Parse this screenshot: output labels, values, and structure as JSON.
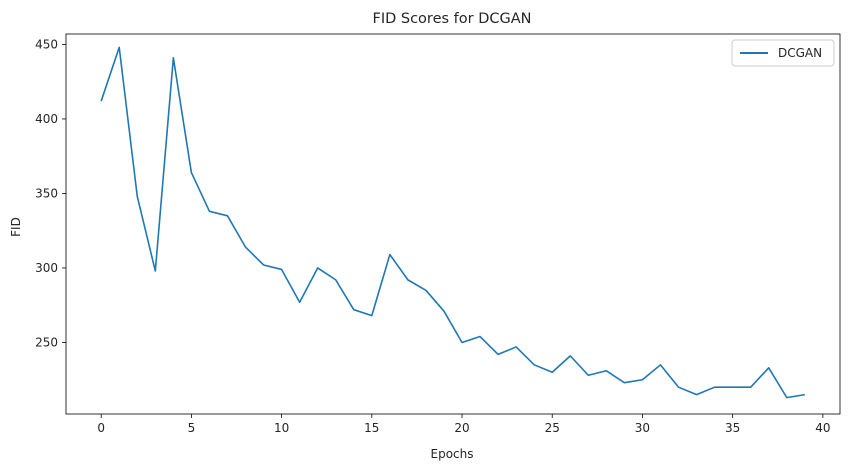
{
  "chart_data": {
    "type": "line",
    "title": "FID Scores for DCGAN",
    "xlabel": "Epochs",
    "ylabel": "FID",
    "xlim": [
      -1.95,
      40.95
    ],
    "ylim": [
      202,
      457
    ],
    "xticks": [
      0,
      5,
      10,
      15,
      20,
      25,
      30,
      35,
      40
    ],
    "yticks": [
      250,
      300,
      350,
      400,
      450
    ],
    "grid": false,
    "legend_position": "top-right",
    "series": [
      {
        "name": "DCGAN",
        "color": "#1f77b4",
        "x": [
          0,
          1,
          2,
          3,
          4,
          5,
          6,
          7,
          8,
          9,
          10,
          11,
          12,
          13,
          14,
          15,
          16,
          17,
          18,
          19,
          20,
          21,
          22,
          23,
          24,
          25,
          26,
          27,
          28,
          29,
          30,
          31,
          32,
          33,
          34,
          35,
          36,
          37,
          38,
          39
        ],
        "values": [
          412,
          448,
          348,
          298,
          441,
          364,
          338,
          335,
          314,
          302,
          299,
          277,
          300,
          292,
          272,
          268,
          309,
          292,
          285,
          271,
          250,
          254,
          242,
          247,
          235,
          230,
          241,
          228,
          231,
          223,
          225,
          235,
          220,
          215,
          220,
          220,
          220,
          233,
          213,
          215
        ]
      }
    ]
  }
}
